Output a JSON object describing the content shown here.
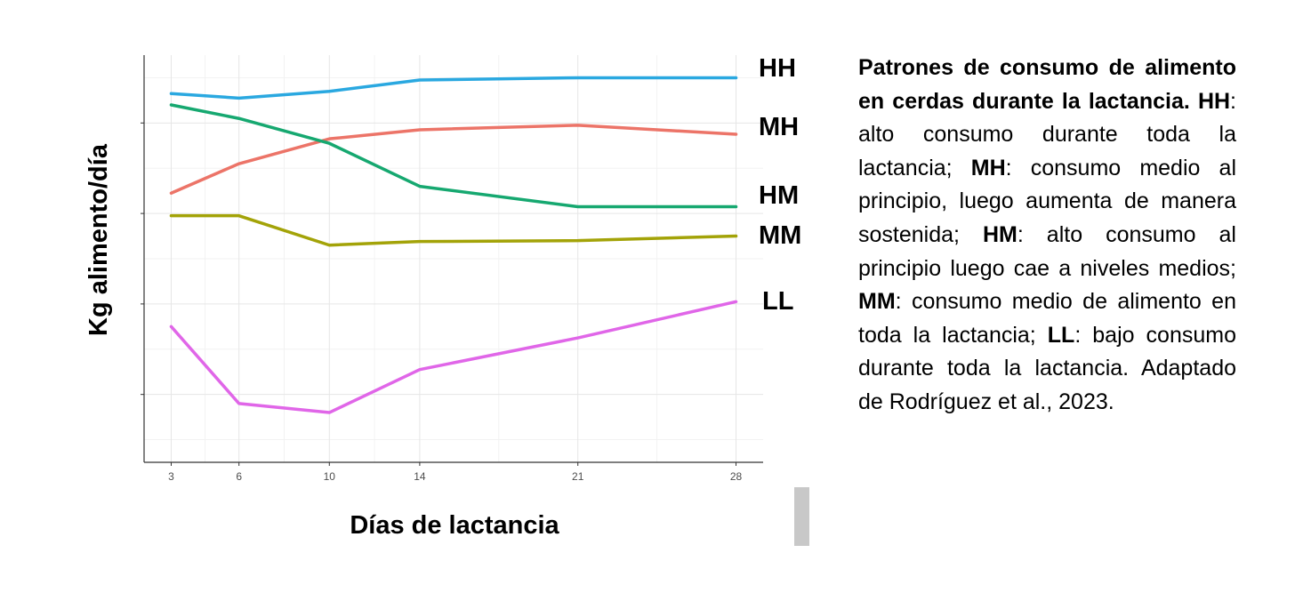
{
  "chart_data": {
    "type": "line",
    "xlabel": "Días de lactancia",
    "ylabel": "Kg alimento/día",
    "x": [
      3,
      6,
      10,
      14,
      21,
      28
    ],
    "xlim": [
      1.8,
      29.2
    ],
    "ylim": [
      0,
      9
    ],
    "y_ticks_labeled": false,
    "grid": true,
    "series": [
      {
        "name": "HH",
        "color": "#2aa8e0",
        "values": [
          8.15,
          8.05,
          8.2,
          8.45,
          8.5,
          8.5
        ]
      },
      {
        "name": "MH",
        "color": "#ec7468",
        "values": [
          5.95,
          6.6,
          7.15,
          7.35,
          7.45,
          7.25
        ]
      },
      {
        "name": "HM",
        "color": "#16a870",
        "values": [
          7.9,
          7.6,
          7.05,
          6.1,
          5.65,
          5.65
        ]
      },
      {
        "name": "MM",
        "color": "#a3a308",
        "values": [
          5.45,
          5.45,
          4.8,
          4.88,
          4.9,
          5.0
        ]
      },
      {
        "name": "LL",
        "color": "#e066e8",
        "values": [
          3.0,
          1.3,
          1.1,
          2.05,
          2.75,
          3.55
        ]
      }
    ]
  },
  "caption": {
    "title": "Patrones de consumo de alimento en cerdas durante la lactancia.",
    "items": [
      {
        "code": "HH",
        "text": ": alto consumo durante toda la lactancia; "
      },
      {
        "code": "MH",
        "text": ": consumo medio al principio, luego aumenta de manera sostenida; "
      },
      {
        "code": "HM",
        "text": ": alto consumo al principio luego cae a niveles medios; "
      },
      {
        "code": "MM",
        "text": ": consumo medio de alimento en toda la lactancia; "
      },
      {
        "code": "LL",
        "text": ": bajo consumo durante toda la lactancia. "
      }
    ],
    "source": "Adaptado de Rodríguez et al., 2023."
  }
}
